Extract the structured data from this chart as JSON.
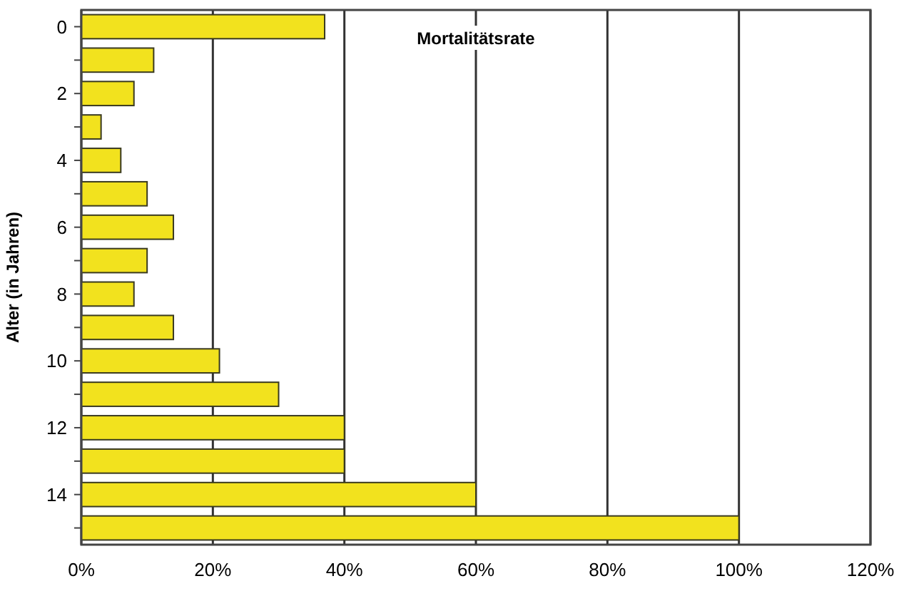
{
  "chart_data": {
    "type": "bar",
    "orientation": "horizontal",
    "title": "Mortalitätsrate",
    "ylabel": "Alter (in Jahren)",
    "categories": [
      "0",
      null,
      "2",
      null,
      "4",
      null,
      "6",
      null,
      "8",
      null,
      "10",
      null,
      "12",
      null,
      "14",
      null
    ],
    "values": [
      37,
      11,
      8,
      3,
      6,
      10,
      14,
      10,
      8,
      14,
      21,
      30,
      40,
      40,
      60,
      100
    ],
    "color": "#f2e21e",
    "xlim": [
      0,
      120
    ],
    "xticks": [
      {
        "value": 0,
        "label": "0%"
      },
      {
        "value": 20,
        "label": "20%"
      },
      {
        "value": 40,
        "label": "40%"
      },
      {
        "value": 60,
        "label": "60%"
      },
      {
        "value": 80,
        "label": "80%"
      },
      {
        "value": 100,
        "label": "100%"
      },
      {
        "value": 120,
        "label": "120%"
      }
    ],
    "grid": "x"
  }
}
